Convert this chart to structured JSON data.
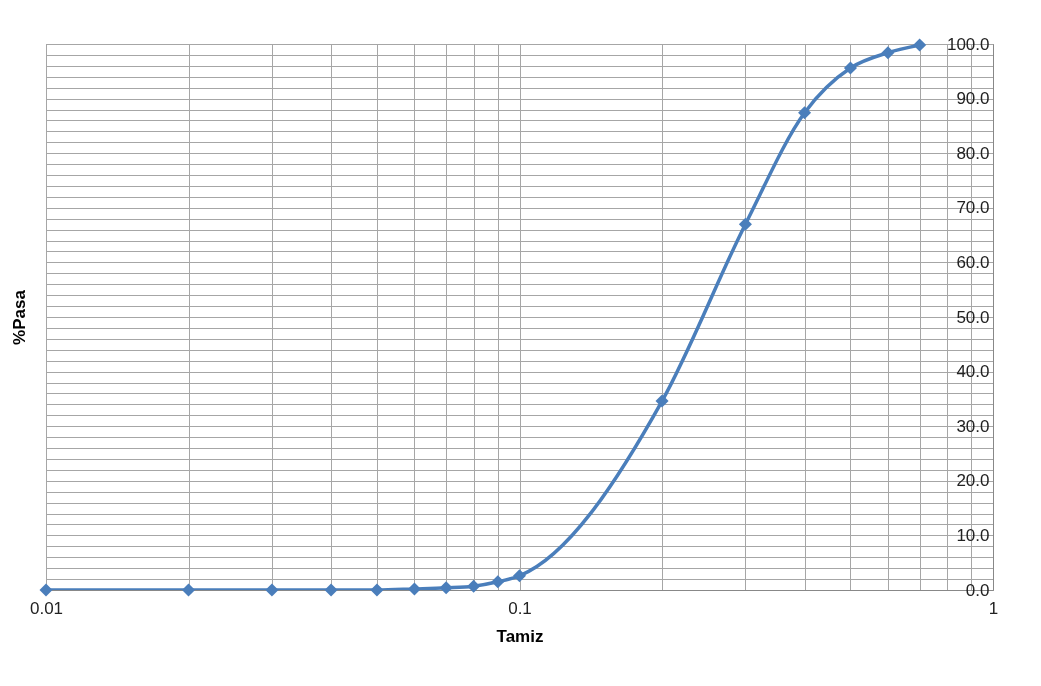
{
  "chart_data": {
    "type": "line",
    "xlabel": "Tamiz",
    "ylabel": "%Pasa",
    "log": "x",
    "grid": true,
    "marker": "diamond",
    "line_style": "solid",
    "x": [
      0.01,
      0.02,
      0.03,
      0.04,
      0.05,
      0.06,
      0.07,
      0.08,
      0.09,
      0.1,
      0.2,
      0.3,
      0.4,
      0.5,
      0.6,
      0.7
    ],
    "series": [
      {
        "color": "#4a7ebb",
        "values": [
          0,
          0,
          0,
          0,
          0,
          0.2,
          0.4,
          0.7,
          1.5,
          2.6,
          34.6,
          67.0,
          87.4,
          95.6,
          98.4,
          99.8
        ]
      }
    ],
    "xlim": [
      0.01,
      1
    ],
    "xticks": [
      0.01,
      {
        "value": 0.02,
        "label": null
      },
      {
        "value": 0.03,
        "label": null
      },
      {
        "value": 0.04,
        "label": null
      },
      {
        "value": 0.05,
        "label": null
      },
      {
        "value": 0.06,
        "label": null
      },
      {
        "value": 0.07,
        "label": null
      },
      {
        "value": 0.08,
        "label": null
      },
      {
        "value": 0.09,
        "label": null
      },
      0.1,
      {
        "value": 0.2,
        "label": null
      },
      {
        "value": 0.3,
        "label": null
      },
      {
        "value": 0.4,
        "label": null
      },
      {
        "value": 0.5,
        "label": null
      },
      {
        "value": 0.6,
        "label": null
      },
      {
        "value": 0.7,
        "label": null
      },
      {
        "value": 0.8,
        "label": null
      },
      {
        "value": 0.9,
        "label": null
      },
      1
    ],
    "ylim": [
      0,
      100
    ],
    "yticks": [
      {
        "value": 0,
        "label": "0.0"
      },
      {
        "value": 2,
        "label": null
      },
      {
        "value": 4,
        "label": null
      },
      {
        "value": 6,
        "label": null
      },
      {
        "value": 8,
        "label": null
      },
      {
        "value": 10,
        "label": "10.0"
      },
      {
        "value": 12,
        "label": null
      },
      {
        "value": 14,
        "label": null
      },
      {
        "value": 16,
        "label": null
      },
      {
        "value": 18,
        "label": null
      },
      {
        "value": 20,
        "label": "20.0"
      },
      {
        "value": 22,
        "label": null
      },
      {
        "value": 24,
        "label": null
      },
      {
        "value": 26,
        "label": null
      },
      {
        "value": 28,
        "label": null
      },
      {
        "value": 30,
        "label": "30.0"
      },
      {
        "value": 32,
        "label": null
      },
      {
        "value": 34,
        "label": null
      },
      {
        "value": 36,
        "label": null
      },
      {
        "value": 38,
        "label": null
      },
      {
        "value": 40,
        "label": "40.0"
      },
      {
        "value": 42,
        "label": null
      },
      {
        "value": 44,
        "label": null
      },
      {
        "value": 46,
        "label": null
      },
      {
        "value": 48,
        "label": null
      },
      {
        "value": 50,
        "label": "50.0"
      },
      {
        "value": 52,
        "label": null
      },
      {
        "value": 54,
        "label": null
      },
      {
        "value": 56,
        "label": null
      },
      {
        "value": 58,
        "label": null
      },
      {
        "value": 60,
        "label": "60.0"
      },
      {
        "value": 62,
        "label": null
      },
      {
        "value": 64,
        "label": null
      },
      {
        "value": 66,
        "label": null
      },
      {
        "value": 68,
        "label": null
      },
      {
        "value": 70,
        "label": "70.0"
      },
      {
        "value": 72,
        "label": null
      },
      {
        "value": 74,
        "label": null
      },
      {
        "value": 76,
        "label": null
      },
      {
        "value": 78,
        "label": null
      },
      {
        "value": 80,
        "label": "80.0"
      },
      {
        "value": 82,
        "label": null
      },
      {
        "value": 84,
        "label": null
      },
      {
        "value": 86,
        "label": null
      },
      {
        "value": 88,
        "label": null
      },
      {
        "value": 90,
        "label": "90.0"
      },
      {
        "value": 92,
        "label": null
      },
      {
        "value": 94,
        "label": null
      },
      {
        "value": 96,
        "label": null
      },
      {
        "value": 98,
        "label": null
      },
      {
        "value": 100,
        "label": "100.0"
      }
    ]
  }
}
